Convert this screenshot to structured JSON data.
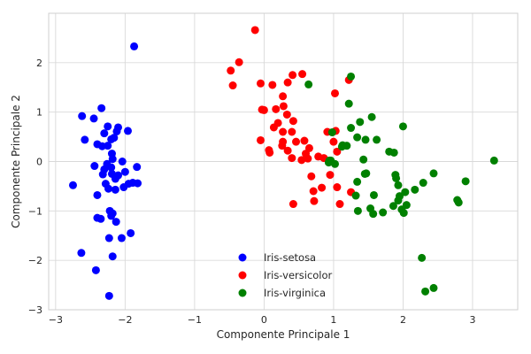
{
  "chart_data": {
    "type": "scatter",
    "title": "",
    "xlabel": "Componente Principale 1",
    "ylabel": "Componente Principale 2",
    "xlim": [
      -3.1,
      3.65
    ],
    "ylim": [
      -3.0,
      3.0
    ],
    "xticks": [
      -3,
      -2,
      -1,
      0,
      1,
      2,
      3
    ],
    "yticks": [
      -3,
      -2,
      -1,
      0,
      1,
      2
    ],
    "grid": true,
    "legend_position": "lower-center",
    "series": [
      {
        "name": "Iris-setosa",
        "color": "#0000ff",
        "points": [
          [
            -2.75,
            -0.48
          ],
          [
            -2.62,
            0.92
          ],
          [
            -2.58,
            0.44
          ],
          [
            -2.63,
            -1.85
          ],
          [
            -2.45,
            0.87
          ],
          [
            -2.4,
            0.35
          ],
          [
            -2.44,
            -0.09
          ],
          [
            -2.4,
            -0.68
          ],
          [
            -2.4,
            -1.14
          ],
          [
            -2.42,
            -2.2
          ],
          [
            -2.34,
            1.08
          ],
          [
            -2.3,
            0.57
          ],
          [
            -2.33,
            0.31
          ],
          [
            -2.3,
            -0.16
          ],
          [
            -2.32,
            -0.26
          ],
          [
            -2.35,
            -1.16
          ],
          [
            -2.25,
            0.71
          ],
          [
            -2.25,
            0.32
          ],
          [
            -2.26,
            -0.05
          ],
          [
            -2.28,
            -0.45
          ],
          [
            -2.24,
            -0.55
          ],
          [
            -2.22,
            -1.0
          ],
          [
            -2.2,
            -1.1
          ],
          [
            -2.23,
            -1.55
          ],
          [
            -2.23,
            -2.72
          ],
          [
            -2.19,
            0.16
          ],
          [
            -2.2,
            0.45
          ],
          [
            -2.2,
            -0.12
          ],
          [
            -2.19,
            -0.25
          ],
          [
            -2.18,
            -1.05
          ],
          [
            -2.18,
            -1.92
          ],
          [
            -2.16,
            0.48
          ],
          [
            -2.14,
            -0.35
          ],
          [
            -2.14,
            -0.57
          ],
          [
            -2.13,
            -1.22
          ],
          [
            -2.12,
            0.61
          ],
          [
            -2.1,
            0.69
          ],
          [
            -2.1,
            -0.28
          ],
          [
            -2.05,
            -1.55
          ],
          [
            -2.04,
            0.0
          ],
          [
            -2.02,
            -0.52
          ],
          [
            -2.0,
            -0.21
          ],
          [
            -1.96,
            0.62
          ],
          [
            -1.95,
            -0.45
          ],
          [
            -1.89,
            -0.43
          ],
          [
            -1.92,
            -1.45
          ],
          [
            -1.83,
            -0.11
          ],
          [
            -1.82,
            -0.44
          ],
          [
            -1.87,
            2.33
          ],
          [
            -2.18,
            0.05
          ]
        ]
      },
      {
        "name": "Iris-versicolor",
        "color": "#ff0000",
        "points": [
          [
            -0.13,
            2.66
          ],
          [
            -0.36,
            2.01
          ],
          [
            -0.48,
            1.84
          ],
          [
            -0.45,
            1.54
          ],
          [
            -0.05,
            1.58
          ],
          [
            0.12,
            1.55
          ],
          [
            0.34,
            1.6
          ],
          [
            0.27,
            1.32
          ],
          [
            0.41,
            1.75
          ],
          [
            0.55,
            1.77
          ],
          [
            -0.03,
            1.05
          ],
          [
            0.0,
            1.04
          ],
          [
            0.17,
            1.06
          ],
          [
            0.28,
            1.12
          ],
          [
            0.33,
            0.95
          ],
          [
            0.42,
            0.82
          ],
          [
            0.2,
            0.78
          ],
          [
            0.14,
            0.69
          ],
          [
            0.27,
            0.6
          ],
          [
            0.4,
            0.6
          ],
          [
            0.27,
            0.4
          ],
          [
            0.26,
            0.32
          ],
          [
            0.07,
            0.23
          ],
          [
            0.08,
            0.18
          ],
          [
            0.34,
            0.22
          ],
          [
            0.46,
            0.4
          ],
          [
            0.58,
            0.42
          ],
          [
            0.65,
            0.27
          ],
          [
            0.6,
            0.16
          ],
          [
            0.54,
            0.03
          ],
          [
            0.4,
            0.07
          ],
          [
            -0.05,
            0.43
          ],
          [
            0.78,
            0.1
          ],
          [
            0.86,
            0.07
          ],
          [
            0.68,
            -0.3
          ],
          [
            0.71,
            -0.6
          ],
          [
            0.72,
            -0.8
          ],
          [
            0.83,
            -0.53
          ],
          [
            0.95,
            -0.27
          ],
          [
            1.05,
            0.2
          ],
          [
            1.03,
            0.62
          ],
          [
            1.0,
            0.4
          ],
          [
            1.02,
            1.38
          ],
          [
            0.91,
            0.6
          ],
          [
            1.25,
            -0.62
          ],
          [
            0.42,
            -0.86
          ],
          [
            1.09,
            -0.86
          ],
          [
            1.05,
            -0.52
          ],
          [
            0.63,
            0.06
          ],
          [
            1.22,
            1.65
          ]
        ]
      },
      {
        "name": "Iris-virginica",
        "color": "#008000",
        "points": [
          [
            1.25,
            1.72
          ],
          [
            1.22,
            1.17
          ],
          [
            1.38,
            0.8
          ],
          [
            1.25,
            0.68
          ],
          [
            1.13,
            0.33
          ],
          [
            1.19,
            0.32
          ],
          [
            1.12,
            0.3
          ],
          [
            1.34,
            0.49
          ],
          [
            1.46,
            0.44
          ],
          [
            1.62,
            0.44
          ],
          [
            1.55,
            0.9
          ],
          [
            2.0,
            0.71
          ],
          [
            1.8,
            0.2
          ],
          [
            1.87,
            0.18
          ],
          [
            0.98,
            0.59
          ],
          [
            0.96,
            0.02
          ],
          [
            0.94,
            0.02
          ],
          [
            0.93,
            -0.02
          ],
          [
            1.02,
            -0.05
          ],
          [
            1.43,
            0.04
          ],
          [
            1.45,
            -0.25
          ],
          [
            1.47,
            -0.24
          ],
          [
            1.34,
            -0.41
          ],
          [
            1.32,
            -0.69
          ],
          [
            1.35,
            -1.0
          ],
          [
            1.53,
            -0.95
          ],
          [
            1.57,
            -1.06
          ],
          [
            1.58,
            -0.68
          ],
          [
            1.71,
            -1.03
          ],
          [
            1.86,
            -0.9
          ],
          [
            1.89,
            -0.27
          ],
          [
            1.9,
            -0.34
          ],
          [
            1.93,
            -0.48
          ],
          [
            1.95,
            -0.7
          ],
          [
            1.98,
            -0.97
          ],
          [
            2.01,
            -1.04
          ],
          [
            2.05,
            -0.88
          ],
          [
            2.03,
            -0.62
          ],
          [
            2.17,
            -0.57
          ],
          [
            2.29,
            -0.43
          ],
          [
            2.44,
            -0.24
          ],
          [
            2.27,
            -1.95
          ],
          [
            2.32,
            -2.63
          ],
          [
            2.44,
            -2.56
          ],
          [
            2.78,
            -0.78
          ],
          [
            2.8,
            -0.83
          ],
          [
            2.9,
            -0.4
          ],
          [
            3.31,
            0.02
          ],
          [
            1.93,
            -0.79
          ],
          [
            0.64,
            1.56
          ]
        ]
      }
    ]
  }
}
